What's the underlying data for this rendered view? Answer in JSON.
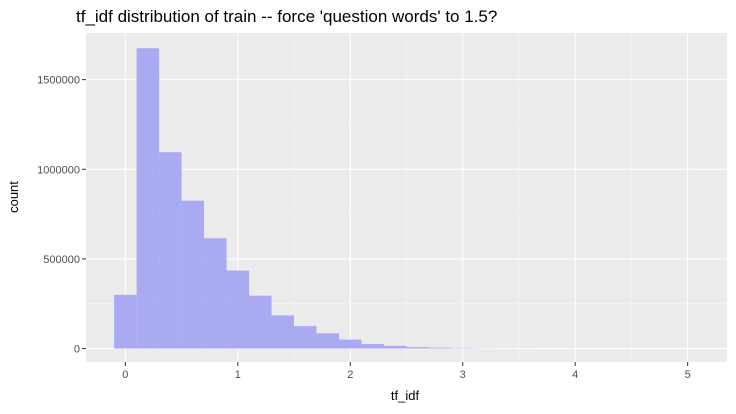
{
  "chart_data": {
    "type": "bar",
    "title": "tf_idf distribution of train -- force 'question words' to 1.5?",
    "xlabel": "tf_idf",
    "ylabel": "count",
    "xlim": [
      -0.35,
      5.35
    ],
    "ylim": [
      -75000,
      1760000
    ],
    "x_ticks": [
      0,
      1,
      2,
      3,
      4,
      5
    ],
    "x_tick_labels": [
      "0",
      "1",
      "2",
      "3",
      "4",
      "5"
    ],
    "y_ticks": [
      0,
      500000,
      1000000,
      1500000
    ],
    "y_tick_labels": [
      "0",
      "500000",
      "1000000",
      "1500000"
    ],
    "bin_width": 0.2,
    "bins": [
      {
        "x0": -0.1,
        "x1": 0.1,
        "count": 300000
      },
      {
        "x0": 0.1,
        "x1": 0.3,
        "count": 1675000
      },
      {
        "x0": 0.3,
        "x1": 0.5,
        "count": 1095000
      },
      {
        "x0": 0.5,
        "x1": 0.7,
        "count": 825000
      },
      {
        "x0": 0.7,
        "x1": 0.9,
        "count": 615000
      },
      {
        "x0": 0.9,
        "x1": 1.1,
        "count": 435000
      },
      {
        "x0": 1.1,
        "x1": 1.3,
        "count": 295000
      },
      {
        "x0": 1.3,
        "x1": 1.5,
        "count": 185000
      },
      {
        "x0": 1.5,
        "x1": 1.7,
        "count": 125000
      },
      {
        "x0": 1.7,
        "x1": 1.9,
        "count": 85000
      },
      {
        "x0": 1.9,
        "x1": 2.1,
        "count": 50000
      },
      {
        "x0": 2.1,
        "x1": 2.3,
        "count": 25000
      },
      {
        "x0": 2.3,
        "x1": 2.5,
        "count": 15000
      },
      {
        "x0": 2.5,
        "x1": 2.7,
        "count": 8000
      },
      {
        "x0": 2.7,
        "x1": 2.9,
        "count": 5000
      },
      {
        "x0": 2.9,
        "x1": 3.1,
        "count": 2000
      },
      {
        "x0": 3.1,
        "x1": 3.3,
        "count": 1000
      },
      {
        "x0": 3.3,
        "x1": 3.5,
        "count": 500
      },
      {
        "x0": 3.5,
        "x1": 3.7,
        "count": 200
      },
      {
        "x0": 3.7,
        "x1": 3.9,
        "count": 100
      },
      {
        "x0": 3.9,
        "x1": 4.1,
        "count": 50
      },
      {
        "x0": 4.1,
        "x1": 4.3,
        "count": 30
      },
      {
        "x0": 4.3,
        "x1": 4.5,
        "count": 20
      },
      {
        "x0": 4.5,
        "x1": 4.7,
        "count": 10
      },
      {
        "x0": 4.7,
        "x1": 4.9,
        "count": 10
      },
      {
        "x0": 4.9,
        "x1": 5.1,
        "count": 5
      }
    ],
    "grid": true,
    "legend": "none",
    "colors": {
      "bar_fill": "#a6a6f2",
      "panel_background": "#ebebeb",
      "grid_major": "#ffffff",
      "grid_minor": "#f5f5f5"
    }
  }
}
